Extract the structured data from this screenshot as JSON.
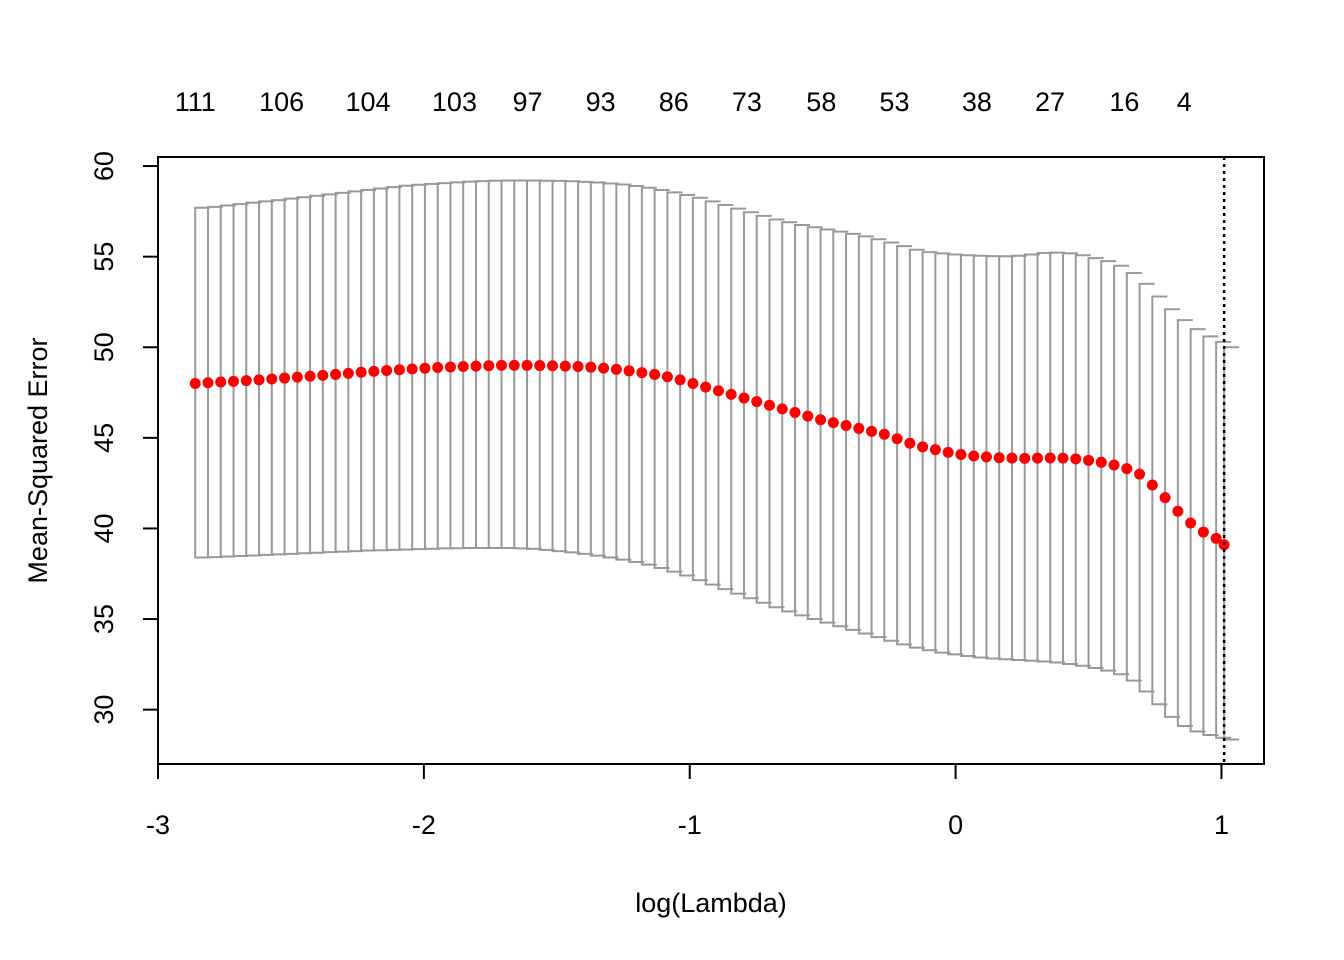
{
  "chart_data": {
    "type": "scatter",
    "xlabel": "log(Lambda)",
    "ylabel": "Mean-Squared Error",
    "xlim": [
      -3.0,
      1.16
    ],
    "ylim": [
      27.0,
      60.5
    ],
    "x_ticks": [
      -3,
      -2,
      -1,
      0,
      1
    ],
    "x_tick_labels": [
      "-3",
      "-2",
      "-1",
      "0",
      "1"
    ],
    "y_ticks": [
      30,
      35,
      40,
      45,
      50,
      55,
      60
    ],
    "y_tick_labels": [
      "30",
      "35",
      "40",
      "45",
      "50",
      "55",
      "60"
    ],
    "top_axis": {
      "positions": [
        -2.86,
        -2.535,
        -2.21,
        -1.885,
        -1.61,
        -1.335,
        -1.06,
        -0.785,
        -0.505,
        -0.23,
        0.08,
        0.355,
        0.635,
        0.86
      ],
      "labels": [
        "111",
        "106",
        "104",
        "103",
        "97",
        "93",
        "86",
        "73",
        "58",
        "53",
        "38",
        "27",
        "16",
        "4"
      ]
    },
    "vline_x": 1.01,
    "grid": false,
    "legend": "none",
    "colors": {
      "point": "#ff0000",
      "errorbar": "#999999",
      "vline": "#000000"
    },
    "series": [
      {
        "x": [
          -2.86,
          -2.812,
          -2.764,
          -2.716,
          -2.668,
          -2.62,
          -2.572,
          -2.524,
          -2.476,
          -2.428,
          -2.38,
          -2.332,
          -2.284,
          -2.236,
          -2.188,
          -2.14,
          -2.092,
          -2.044,
          -1.996,
          -1.948,
          -1.9,
          -1.852,
          -1.804,
          -1.756,
          -1.708,
          -1.66,
          -1.612,
          -1.564,
          -1.516,
          -1.468,
          -1.42,
          -1.372,
          -1.324,
          -1.276,
          -1.228,
          -1.18,
          -1.132,
          -1.084,
          -1.036,
          -0.988,
          -0.94,
          -0.892,
          -0.844,
          -0.796,
          -0.748,
          -0.7,
          -0.652,
          -0.604,
          -0.556,
          -0.508,
          -0.46,
          -0.412,
          -0.364,
          -0.316,
          -0.268,
          -0.22,
          -0.172,
          -0.124,
          -0.076,
          -0.028,
          0.02,
          0.068,
          0.116,
          0.164,
          0.212,
          0.26,
          0.308,
          0.356,
          0.404,
          0.452,
          0.5,
          0.548,
          0.596,
          0.644,
          0.692,
          0.74,
          0.788,
          0.836,
          0.884,
          0.932,
          0.98,
          1.01
        ],
        "y": [
          48.0,
          48.04,
          48.08,
          48.12,
          48.16,
          48.2,
          48.25,
          48.3,
          48.35,
          48.4,
          48.45,
          48.5,
          48.56,
          48.62,
          48.67,
          48.72,
          48.76,
          48.8,
          48.84,
          48.88,
          48.91,
          48.94,
          48.96,
          48.98,
          49.0,
          49.0,
          49.0,
          48.99,
          48.98,
          48.96,
          48.94,
          48.9,
          48.85,
          48.78,
          48.7,
          48.6,
          48.5,
          48.37,
          48.2,
          48.0,
          47.8,
          47.6,
          47.4,
          47.2,
          47.0,
          46.8,
          46.6,
          46.4,
          46.2,
          46.0,
          45.84,
          45.68,
          45.52,
          45.36,
          45.2,
          44.95,
          44.7,
          44.5,
          44.35,
          44.2,
          44.08,
          44.0,
          43.95,
          43.9,
          43.88,
          43.87,
          43.88,
          43.89,
          43.88,
          43.84,
          43.76,
          43.65,
          43.5,
          43.3,
          43.0,
          42.4,
          41.7,
          40.95,
          40.3,
          39.8,
          39.45,
          39.1
        ],
        "upper": [
          57.7,
          57.75,
          57.82,
          57.9,
          57.98,
          58.05,
          58.12,
          58.2,
          58.28,
          58.36,
          58.44,
          58.52,
          58.6,
          58.68,
          58.76,
          58.84,
          58.91,
          58.97,
          59.02,
          59.06,
          59.1,
          59.14,
          59.17,
          59.19,
          59.2,
          59.2,
          59.2,
          59.19,
          59.18,
          59.16,
          59.13,
          59.09,
          59.04,
          58.98,
          58.9,
          58.8,
          58.68,
          58.55,
          58.4,
          58.25,
          58.05,
          57.85,
          57.65,
          57.45,
          57.25,
          57.05,
          56.9,
          56.75,
          56.62,
          56.5,
          56.38,
          56.26,
          56.12,
          55.96,
          55.78,
          55.58,
          55.38,
          55.25,
          55.18,
          55.12,
          55.08,
          55.05,
          55.03,
          55.02,
          55.05,
          55.12,
          55.2,
          55.22,
          55.18,
          55.08,
          54.92,
          54.75,
          54.5,
          54.1,
          53.5,
          52.8,
          52.1,
          51.5,
          51.0,
          50.6,
          50.3,
          50.0
        ],
        "lower": [
          38.4,
          38.42,
          38.45,
          38.48,
          38.51,
          38.54,
          38.57,
          38.6,
          38.63,
          38.66,
          38.69,
          38.72,
          38.75,
          38.78,
          38.8,
          38.82,
          38.84,
          38.86,
          38.88,
          38.9,
          38.91,
          38.92,
          38.92,
          38.92,
          38.92,
          38.9,
          38.87,
          38.82,
          38.75,
          38.68,
          38.6,
          38.5,
          38.4,
          38.28,
          38.15,
          38.0,
          37.82,
          37.62,
          37.4,
          37.15,
          36.9,
          36.65,
          36.4,
          36.15,
          35.9,
          35.65,
          35.42,
          35.2,
          35.0,
          34.8,
          34.6,
          34.4,
          34.2,
          34.0,
          33.8,
          33.6,
          33.42,
          33.28,
          33.15,
          33.05,
          32.96,
          32.88,
          32.82,
          32.78,
          32.74,
          32.7,
          32.66,
          32.6,
          32.52,
          32.42,
          32.3,
          32.15,
          31.95,
          31.6,
          31.0,
          30.3,
          29.6,
          29.1,
          28.8,
          28.6,
          28.45,
          28.35
        ]
      }
    ]
  }
}
